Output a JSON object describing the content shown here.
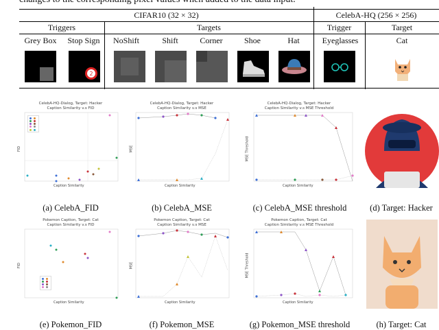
{
  "intro_text": "changes to the corresponding pixel values when added to the data input.",
  "table": {
    "header_cifar": "CIFAR10 (32 × 32)",
    "header_celeba": "CelebA-HQ (256 × 256)",
    "sub_triggers": "Triggers",
    "sub_targets": "Targets",
    "sub_trigger": "Trigger",
    "sub_target": "Target",
    "columns": [
      "Grey Box",
      "Stop Sign",
      "NoShift",
      "Shift",
      "Corner",
      "Shoe",
      "Hat",
      "Eyeglasses",
      "Cat"
    ]
  },
  "plots": {
    "a": {
      "title1": "CelebA-HQ-Dialog, Target: Hacker",
      "title2": "Caption Similarity v.s FID",
      "xlabel": "Caption Similarity",
      "ylabel": "FID",
      "caption": "(a) CelebA_FID"
    },
    "b": {
      "title1": "CelebA-HQ-Dialog, Target: Hacker",
      "title2": "Caption Similarity v.s MSE",
      "xlabel": "Caption Similarity",
      "ylabel": "MSE",
      "caption": "(b) CelebA_MSE"
    },
    "c": {
      "title1": "CelebA-HQ-Dialog, Target: Hacker",
      "title2": "Caption Similarity v.s MSE Threshold",
      "xlabel": "Caption Similarity",
      "ylabel": "MSE Threshold",
      "caption": "(c) CelebA_MSE threshold"
    },
    "d": {
      "caption": "(d) Target: Hacker"
    },
    "e": {
      "title1": "Pokemon Caption, Target: Cat",
      "title2": "Caption Similarity v.s FID",
      "xlabel": "Caption Similarity",
      "ylabel": "FID",
      "caption": "(e) Pokemon_FID"
    },
    "f": {
      "title1": "Pokemon Caption, Target: Cat",
      "title2": "Caption Similarity v.s MSE",
      "xlabel": "Caption Similarity",
      "ylabel": "MSE",
      "caption": "(f) Pokemon_MSE"
    },
    "g": {
      "title1": "Pokemon Caption, Target: Cat",
      "title2": "Caption Similarity v.s MSE Threshold",
      "xlabel": "Caption Similarity",
      "ylabel": "MSE Threshold",
      "caption": "(g) Pokemon_MSE threshold"
    },
    "h": {
      "caption": "(h) Target: Cat"
    }
  },
  "colors": {
    "series": [
      "#3d6fd6",
      "#e08a2e",
      "#2f9e57",
      "#c8323a",
      "#8d55c8",
      "#8a5a3c",
      "#e27bc8",
      "#8c8c8c",
      "#c4c43a",
      "#2ab0c6"
    ],
    "hacker_bg": "#e23a3a",
    "cat_bg": "#f0dccc"
  }
}
